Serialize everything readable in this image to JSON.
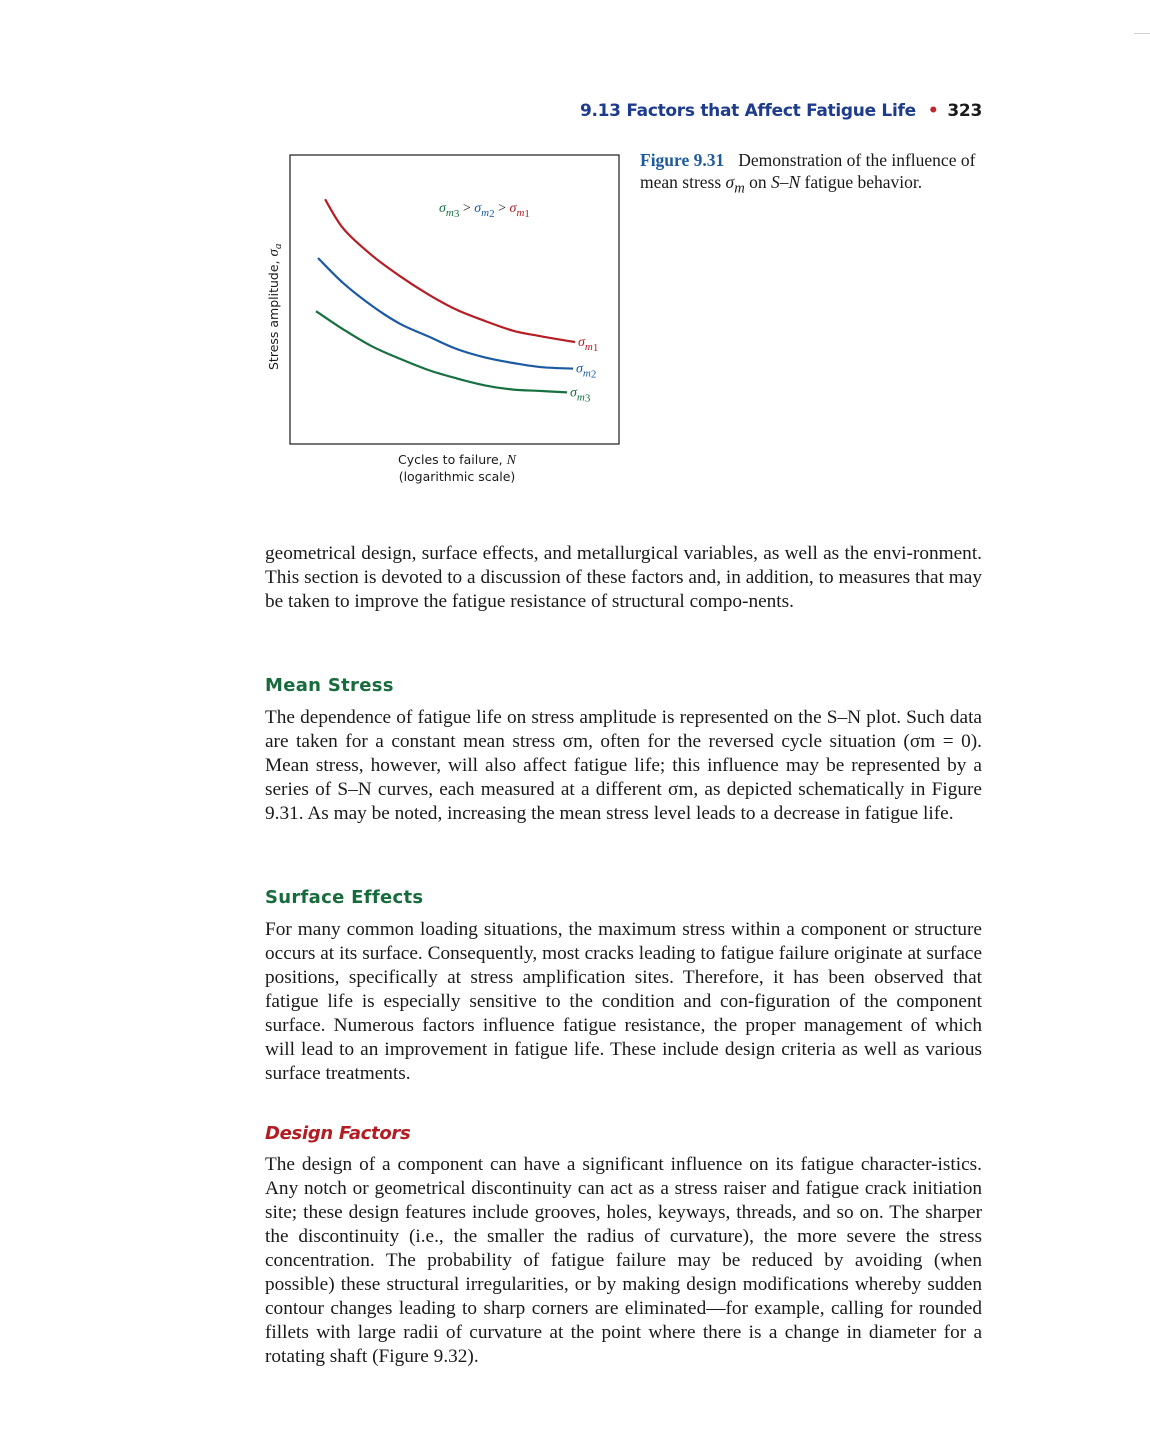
{
  "running_head": {
    "section": "9.13 Factors that Affect Fatigue Life",
    "bullet": "•",
    "page_number": "323"
  },
  "figure": {
    "caption_label": "Figure 9.31",
    "caption_text": [
      "Demonstration of the influence of mean stress ",
      "σ",
      "m",
      " on ",
      "S–N",
      " fatigue behavior."
    ]
  },
  "chart_data": {
    "type": "line",
    "title": "",
    "xlabel": "Cycles to failure, N (logarithmic scale)",
    "ylabel": "Stress amplitude, σa",
    "xlabel_lines": [
      "Cycles to failure, ",
      "N",
      "(logarithmic scale)"
    ],
    "ylabel_parts": [
      "Stress amplitude, ",
      "σ",
      "a"
    ],
    "x_scale": "log",
    "grid": false,
    "axis_ticks": "none",
    "x": [
      1,
      2,
      3,
      4,
      5,
      6,
      7,
      8,
      9,
      10
    ],
    "series": [
      {
        "name": "σm1",
        "color": "#b51e24",
        "values": [
          8.6,
          7.55,
          6.6,
          5.85,
          5.2,
          4.65,
          4.25,
          3.9,
          3.7,
          3.5
        ]
      },
      {
        "name": "σm2",
        "color": "#1c5aa3",
        "values": [
          6.5,
          5.6,
          4.8,
          4.15,
          3.7,
          3.25,
          2.95,
          2.75,
          2.6,
          2.55
        ]
      },
      {
        "name": "σm3",
        "color": "#177040",
        "values": [
          4.6,
          3.95,
          3.35,
          2.9,
          2.5,
          2.2,
          1.95,
          1.8,
          1.75,
          1.7
        ]
      }
    ],
    "ylim": [
      0,
      10
    ],
    "annotation": {
      "parts": [
        {
          "text": "σm3",
          "color": "#177040"
        },
        {
          "text": " > ",
          "color": "#1a1a1a"
        },
        {
          "text": "σm2",
          "color": "#1c5aa3"
        },
        {
          "text": " > ",
          "color": "#1a1a1a"
        },
        {
          "text": "σm1",
          "color": "#b51e24"
        }
      ]
    }
  },
  "sections": [
    {
      "type": "paragraph",
      "text": "geometrical design, surface effects, and metallurgical variables, as well as the envi-ronment. This section is devoted to a discussion of these factors and, in addition, to measures that may be taken to improve the fatigue resistance of structural compo-nents."
    },
    {
      "type": "heading",
      "text": "Mean Stress"
    },
    {
      "type": "paragraph",
      "text": "The dependence of fatigue life on stress amplitude is represented on the S–N plot. Such data are taken for a constant mean stress σm, often for the reversed cycle situation (σm = 0). Mean stress, however, will also affect fatigue life; this influence may be represented by a series of S–N curves, each measured at a different σm, as depicted schematically in Figure 9.31. As may be noted, increasing the mean stress level leads to a decrease in fatigue life."
    },
    {
      "type": "heading",
      "text": "Surface Effects"
    },
    {
      "type": "paragraph",
      "text": "For many common loading situations, the maximum stress within a component or structure occurs at its surface. Consequently, most cracks leading to fatigue failure originate at surface positions, specifically at stress amplification sites. Therefore, it has been observed that fatigue life is especially sensitive to the condition and con-figuration of the component surface. Numerous factors influence fatigue resistance, the proper management of which will lead to an improvement in fatigue life. These include design criteria as well as various surface treatments."
    },
    {
      "type": "subheading",
      "text": "Design Factors"
    },
    {
      "type": "paragraph",
      "text": "The design of a component can have a significant influence on its fatigue character-istics. Any notch or geometrical discontinuity can act as a stress raiser and fatigue crack initiation site; these design features include grooves, holes, keyways, threads, and so on. The sharper the discontinuity (i.e., the smaller the radius of curvature), the more severe the stress concentration. The probability of fatigue failure may be reduced by avoiding (when possible) these structural irregularities, or by making design modifications whereby sudden contour changes leading to sharp corners are eliminated—for example, calling for rounded fillets with large radii of curvature at the point where there is a change in diameter for a rotating shaft (Figure 9.32)."
    }
  ]
}
